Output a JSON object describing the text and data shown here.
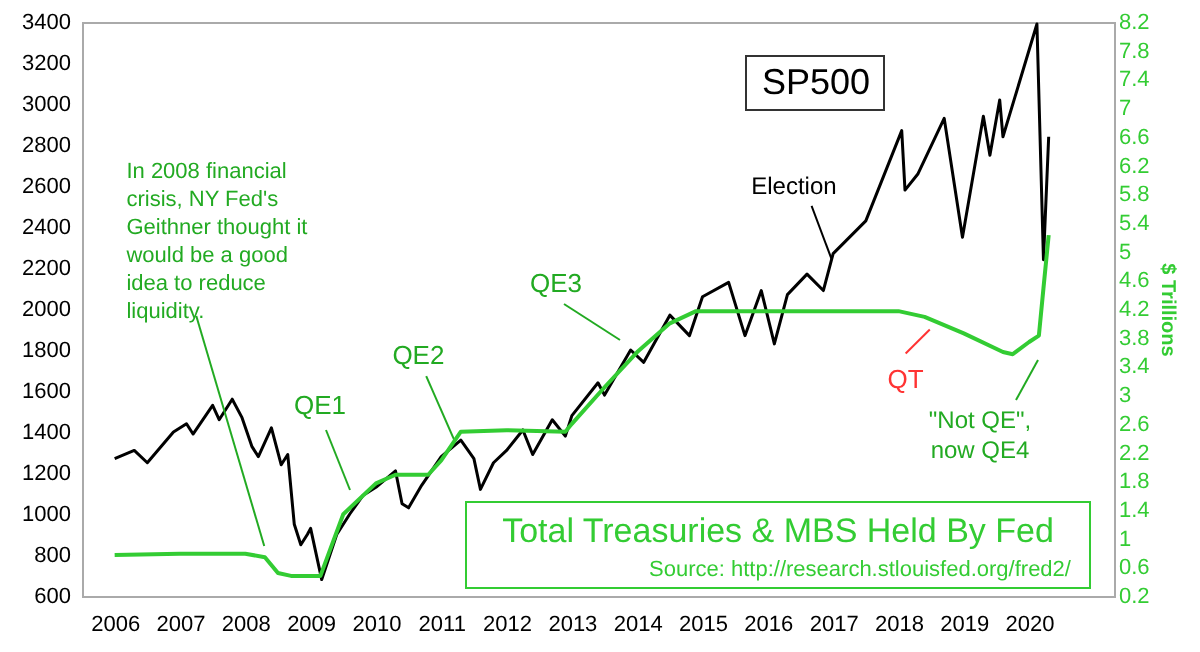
{
  "chart_data": {
    "type": "line",
    "xlim": [
      2005.5,
      2021.3
    ],
    "xticks": [
      2006,
      2007,
      2008,
      2009,
      2010,
      2011,
      2012,
      2013,
      2014,
      2015,
      2016,
      2017,
      2018,
      2019,
      2020
    ],
    "ylim": [
      600,
      3400
    ],
    "yticks": [
      600,
      800,
      1000,
      1200,
      1400,
      1600,
      1800,
      2000,
      2200,
      2400,
      2600,
      2800,
      3000,
      3200,
      3400
    ],
    "y2lim": [
      0.2,
      8.2
    ],
    "y2ticks": [
      0.2,
      0.6,
      1,
      1.4,
      1.8,
      2.2,
      2.6,
      3,
      3.4,
      3.8,
      4.2,
      4.6,
      5,
      5.4,
      5.8,
      6.2,
      6.6,
      7,
      7.4,
      7.8,
      8.2
    ],
    "y2label": "$ Trillions",
    "grid": false,
    "legend": false,
    "series": [
      {
        "name": "SP500",
        "color": "#000000",
        "x": [
          2006.0,
          2006.3,
          2006.5,
          2006.9,
          2007.1,
          2007.2,
          2007.5,
          2007.6,
          2007.8,
          2007.95,
          2008.1,
          2008.2,
          2008.4,
          2008.55,
          2008.65,
          2008.75,
          2008.85,
          2008.95,
          2009.0,
          2009.17,
          2009.4,
          2009.6,
          2009.8,
          2010.0,
          2010.3,
          2010.4,
          2010.5,
          2010.7,
          2011.0,
          2011.3,
          2011.5,
          2011.6,
          2011.8,
          2012.0,
          2012.25,
          2012.4,
          2012.7,
          2012.9,
          2013.0,
          2013.4,
          2013.5,
          2013.9,
          2014.1,
          2014.5,
          2014.8,
          2015.0,
          2015.4,
          2015.65,
          2015.9,
          2016.1,
          2016.3,
          2016.6,
          2016.85,
          2017.0,
          2017.5,
          2018.05,
          2018.1,
          2018.3,
          2018.7,
          2018.98,
          2019.3,
          2019.4,
          2019.55,
          2019.6,
          2020.12,
          2020.22,
          2020.3
        ],
        "values": [
          1270,
          1310,
          1250,
          1400,
          1440,
          1390,
          1530,
          1460,
          1560,
          1470,
          1330,
          1280,
          1420,
          1240,
          1290,
          950,
          850,
          900,
          930,
          680,
          900,
          1000,
          1090,
          1130,
          1210,
          1050,
          1030,
          1140,
          1280,
          1360,
          1270,
          1120,
          1250,
          1310,
          1410,
          1290,
          1460,
          1380,
          1480,
          1640,
          1580,
          1800,
          1740,
          1970,
          1870,
          2060,
          2130,
          1870,
          2090,
          1830,
          2070,
          2170,
          2090,
          2270,
          2430,
          2870,
          2580,
          2660,
          2930,
          2350,
          2940,
          2750,
          3020,
          2840,
          3390,
          2240,
          2840
        ]
      },
      {
        "name": "Total Treasuries & MBS Held By Fed",
        "color": "#33cc33",
        "axis": "y2",
        "x": [
          2006.0,
          2007.0,
          2008.0,
          2008.3,
          2008.5,
          2008.7,
          2009.15,
          2009.3,
          2009.5,
          2010.0,
          2010.3,
          2010.8,
          2011.0,
          2011.3,
          2012.0,
          2012.9,
          2013.0,
          2013.5,
          2014.0,
          2014.5,
          2014.9,
          2016.0,
          2017.5,
          2018.0,
          2018.4,
          2019.0,
          2019.6,
          2019.75,
          2020.0,
          2020.15,
          2020.22,
          2020.3
        ],
        "values": [
          0.77,
          0.79,
          0.79,
          0.74,
          0.52,
          0.48,
          0.48,
          0.85,
          1.34,
          1.77,
          1.89,
          1.89,
          2.09,
          2.49,
          2.51,
          2.49,
          2.6,
          3.11,
          3.6,
          4.0,
          4.17,
          4.17,
          4.17,
          4.17,
          4.09,
          3.86,
          3.6,
          3.57,
          3.74,
          3.83,
          4.49,
          5.23
        ]
      }
    ],
    "annotations": [
      {
        "text": "In 2008 financial\ncrisis, NY Fed's\nGeithner thought it\nwould be a good\nidea to reduce\nliquidity.",
        "x": 2008.29,
        "y": 844
      },
      "QE1",
      {
        "text": "QE2",
        "x": 2011.2,
        "y": 1360
      },
      "QE3",
      {
        "text": "Election",
        "x": 2016.98,
        "y": 2240
      },
      {
        "text": "QT",
        "x": 2018.48,
        "y": 1900
      },
      "\"Not QE\",\nnow QE4",
      "Source: http://research.stlouisfed.org/fred2/"
    ]
  }
}
